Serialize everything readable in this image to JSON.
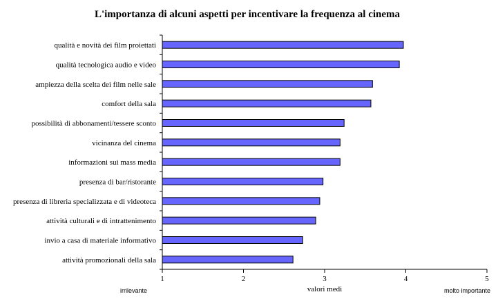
{
  "chart_data": {
    "type": "bar",
    "orientation": "horizontal",
    "title": "L'importanza di alcuni aspetti per incentivare la frequenza al cinema",
    "xlabel": "valori medi",
    "xlim": [
      1,
      5
    ],
    "xticks": [
      "1",
      "2",
      "3",
      "4",
      "5"
    ],
    "scale_low_label": "irrilevante",
    "scale_high_label": "molto importante",
    "grid": false,
    "bar_color": "#6666ff",
    "categories": [
      "qualità e novità dei film proiettati",
      "qualità tecnologica audio e video",
      "ampiezza della scelta dei film nelle sale",
      "comfort della sala",
      "possibilità di abbonamenti/tessere sconto",
      "vicinanza del cinema",
      "informazioni sui mass media",
      "presenza di bar/ristorante",
      "presenza di libreria specializzata e di videoteca",
      "attività culturali e di intrattenimento",
      "invio a casa di materiale informativo",
      "attività promozionali della sala"
    ],
    "values": [
      3.97,
      3.92,
      3.59,
      3.57,
      3.24,
      3.19,
      3.19,
      2.98,
      2.94,
      2.89,
      2.73,
      2.61
    ]
  }
}
